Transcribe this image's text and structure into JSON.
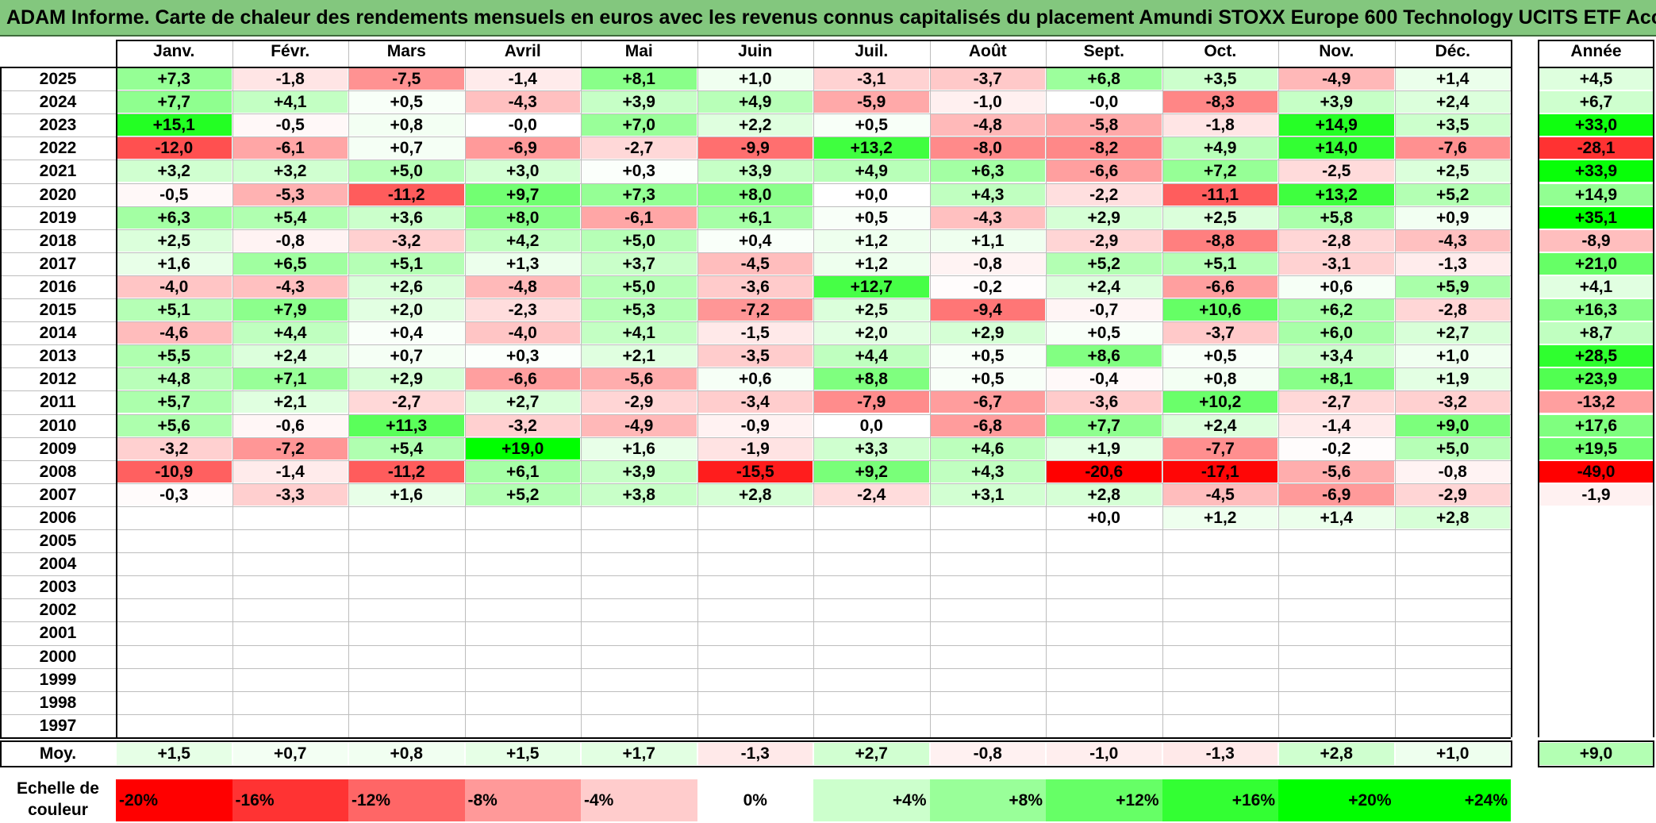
{
  "title": "ADAM Informe. Carte de chaleur des rendements mensuels en euros avec les revenus connus capitalisés du placement Amundi STOXX Europe 600 Technology UCITS ETF Acc",
  "chart_data": {
    "type": "heatmap",
    "columns": [
      "Janv.",
      "Févr.",
      "Mars",
      "Avril",
      "Mai",
      "Juin",
      "Juil.",
      "Août",
      "Sept.",
      "Oct.",
      "Nov.",
      "Déc."
    ],
    "annual_label": "Année",
    "rows": [
      {
        "year": "2025",
        "values": [
          "+7,3",
          "-1,8",
          "-7,5",
          "-1,4",
          "+8,1",
          "+1,0",
          "-3,1",
          "-3,7",
          "+6,8",
          "+3,5",
          "-4,9",
          "+1,4"
        ],
        "annual": "+4,5"
      },
      {
        "year": "2024",
        "values": [
          "+7,7",
          "+4,1",
          "+0,5",
          "-4,3",
          "+3,9",
          "+4,9",
          "-5,9",
          "-1,0",
          "-0,0",
          "-8,3",
          "+3,9",
          "+2,4"
        ],
        "annual": "+6,7"
      },
      {
        "year": "2023",
        "values": [
          "+15,1",
          "-0,5",
          "+0,8",
          "-0,0",
          "+7,0",
          "+2,2",
          "+0,5",
          "-4,8",
          "-5,8",
          "-1,8",
          "+14,9",
          "+3,5"
        ],
        "annual": "+33,0"
      },
      {
        "year": "2022",
        "values": [
          "-12,0",
          "-6,1",
          "+0,7",
          "-6,9",
          "-2,7",
          "-9,9",
          "+13,2",
          "-8,0",
          "-8,2",
          "+4,9",
          "+14,0",
          "-7,6"
        ],
        "annual": "-28,1"
      },
      {
        "year": "2021",
        "values": [
          "+3,2",
          "+3,2",
          "+5,0",
          "+3,0",
          "+0,3",
          "+3,9",
          "+4,9",
          "+6,3",
          "-6,6",
          "+7,2",
          "-2,5",
          "+2,5"
        ],
        "annual": "+33,9"
      },
      {
        "year": "2020",
        "values": [
          "-0,5",
          "-5,3",
          "-11,2",
          "+9,7",
          "+7,3",
          "+8,0",
          "+0,0",
          "+4,3",
          "-2,2",
          "-11,1",
          "+13,2",
          "+5,2"
        ],
        "annual": "+14,9"
      },
      {
        "year": "2019",
        "values": [
          "+6,3",
          "+5,4",
          "+3,6",
          "+8,0",
          "-6,1",
          "+6,1",
          "+0,5",
          "-4,3",
          "+2,9",
          "+2,5",
          "+5,8",
          "+0,9"
        ],
        "annual": "+35,1"
      },
      {
        "year": "2018",
        "values": [
          "+2,5",
          "-0,8",
          "-3,2",
          "+4,2",
          "+5,0",
          "+0,4",
          "+1,2",
          "+1,1",
          "-2,9",
          "-8,8",
          "-2,8",
          "-4,3"
        ],
        "annual": "-8,9"
      },
      {
        "year": "2017",
        "values": [
          "+1,6",
          "+6,5",
          "+5,1",
          "+1,3",
          "+3,7",
          "-4,5",
          "+1,2",
          "-0,8",
          "+5,2",
          "+5,1",
          "-3,1",
          "-1,3"
        ],
        "annual": "+21,0"
      },
      {
        "year": "2016",
        "values": [
          "-4,0",
          "-4,3",
          "+2,6",
          "-4,8",
          "+5,0",
          "-3,6",
          "+12,7",
          "-0,2",
          "+2,4",
          "-6,6",
          "+0,6",
          "+5,9"
        ],
        "annual": "+4,1"
      },
      {
        "year": "2015",
        "values": [
          "+5,1",
          "+7,9",
          "+2,0",
          "-2,3",
          "+5,3",
          "-7,2",
          "+2,5",
          "-9,4",
          "-0,7",
          "+10,6",
          "+6,2",
          "-2,8"
        ],
        "annual": "+16,3"
      },
      {
        "year": "2014",
        "values": [
          "-4,6",
          "+4,4",
          "+0,4",
          "-4,0",
          "+4,1",
          "-1,5",
          "+2,0",
          "+2,9",
          "+0,5",
          "-3,7",
          "+6,0",
          "+2,7"
        ],
        "annual": "+8,7"
      },
      {
        "year": "2013",
        "values": [
          "+5,5",
          "+2,4",
          "+0,7",
          "+0,3",
          "+2,1",
          "-3,5",
          "+4,4",
          "+0,5",
          "+8,6",
          "+0,5",
          "+3,4",
          "+1,0"
        ],
        "annual": "+28,5"
      },
      {
        "year": "2012",
        "values": [
          "+4,8",
          "+7,1",
          "+2,9",
          "-6,6",
          "-5,6",
          "+0,6",
          "+8,8",
          "+0,5",
          "-0,4",
          "+0,8",
          "+8,1",
          "+1,9"
        ],
        "annual": "+23,9"
      },
      {
        "year": "2011",
        "values": [
          "+5,7",
          "+2,1",
          "-2,7",
          "+2,7",
          "-2,9",
          "-3,4",
          "-7,9",
          "-6,7",
          "-3,6",
          "+10,2",
          "-2,7",
          "-3,2"
        ],
        "annual": "-13,2"
      },
      {
        "year": "2010",
        "values": [
          "+5,6",
          "-0,6",
          "+11,3",
          "-3,2",
          "-4,9",
          "-0,9",
          "0,0",
          "-6,8",
          "+7,7",
          "+2,4",
          "-1,4",
          "+9,0"
        ],
        "annual": "+17,6"
      },
      {
        "year": "2009",
        "values": [
          "-3,2",
          "-7,2",
          "+5,4",
          "+19,0",
          "+1,6",
          "-1,9",
          "+3,3",
          "+4,6",
          "+1,9",
          "-7,7",
          "-0,2",
          "+5,0"
        ],
        "annual": "+19,5"
      },
      {
        "year": "2008",
        "values": [
          "-10,9",
          "-1,4",
          "-11,2",
          "+6,1",
          "+3,9",
          "-15,5",
          "+9,2",
          "+4,3",
          "-20,6",
          "-17,1",
          "-5,6",
          "-0,8"
        ],
        "annual": "-49,0"
      },
      {
        "year": "2007",
        "values": [
          "-0,3",
          "-3,3",
          "+1,6",
          "+5,2",
          "+3,8",
          "+2,8",
          "-2,4",
          "+3,1",
          "+2,8",
          "-4,5",
          "-6,9",
          "-2,9"
        ],
        "annual": "-1,9"
      },
      {
        "year": "2006",
        "values": [
          "",
          "",
          "",
          "",
          "",
          "",
          "",
          "",
          "+0,0",
          "+1,2",
          "+1,4",
          "+2,8"
        ],
        "annual": ""
      },
      {
        "year": "2005",
        "values": [
          "",
          "",
          "",
          "",
          "",
          "",
          "",
          "",
          "",
          "",
          "",
          ""
        ],
        "annual": ""
      },
      {
        "year": "2004",
        "values": [
          "",
          "",
          "",
          "",
          "",
          "",
          "",
          "",
          "",
          "",
          "",
          ""
        ],
        "annual": ""
      },
      {
        "year": "2003",
        "values": [
          "",
          "",
          "",
          "",
          "",
          "",
          "",
          "",
          "",
          "",
          "",
          ""
        ],
        "annual": ""
      },
      {
        "year": "2002",
        "values": [
          "",
          "",
          "",
          "",
          "",
          "",
          "",
          "",
          "",
          "",
          "",
          ""
        ],
        "annual": ""
      },
      {
        "year": "2001",
        "values": [
          "",
          "",
          "",
          "",
          "",
          "",
          "",
          "",
          "",
          "",
          "",
          ""
        ],
        "annual": ""
      },
      {
        "year": "2000",
        "values": [
          "",
          "",
          "",
          "",
          "",
          "",
          "",
          "",
          "",
          "",
          "",
          ""
        ],
        "annual": ""
      },
      {
        "year": "1999",
        "values": [
          "",
          "",
          "",
          "",
          "",
          "",
          "",
          "",
          "",
          "",
          "",
          ""
        ],
        "annual": ""
      },
      {
        "year": "1998",
        "values": [
          "",
          "",
          "",
          "",
          "",
          "",
          "",
          "",
          "",
          "",
          "",
          ""
        ],
        "annual": ""
      },
      {
        "year": "1997",
        "values": [
          "",
          "",
          "",
          "",
          "",
          "",
          "",
          "",
          "",
          "",
          "",
          ""
        ],
        "annual": ""
      }
    ],
    "average": {
      "label": "Moy.",
      "values": [
        "+1,5",
        "+0,7",
        "+0,8",
        "+1,5",
        "+1,7",
        "-1,3",
        "+2,7",
        "-0,8",
        "-1,0",
        "-1,3",
        "+2,8",
        "+1,0"
      ],
      "annual": "+9,0"
    },
    "legend": {
      "label_line1": "Echelle de",
      "label_line2": "couleur",
      "steps": [
        "-20%",
        "-16%",
        "-12%",
        "-8%",
        "-4%",
        "0%",
        "+4%",
        "+8%",
        "+12%",
        "+16%",
        "+20%",
        "+24%"
      ],
      "step_values": [
        -20,
        -16,
        -12,
        -8,
        -4,
        0,
        4,
        8,
        12,
        16,
        20,
        24
      ]
    },
    "colors": {
      "title_bg": "#83c77e",
      "max_negative": "#ff0000",
      "neutral": "#ffffff",
      "max_positive": "#00ff00"
    }
  }
}
